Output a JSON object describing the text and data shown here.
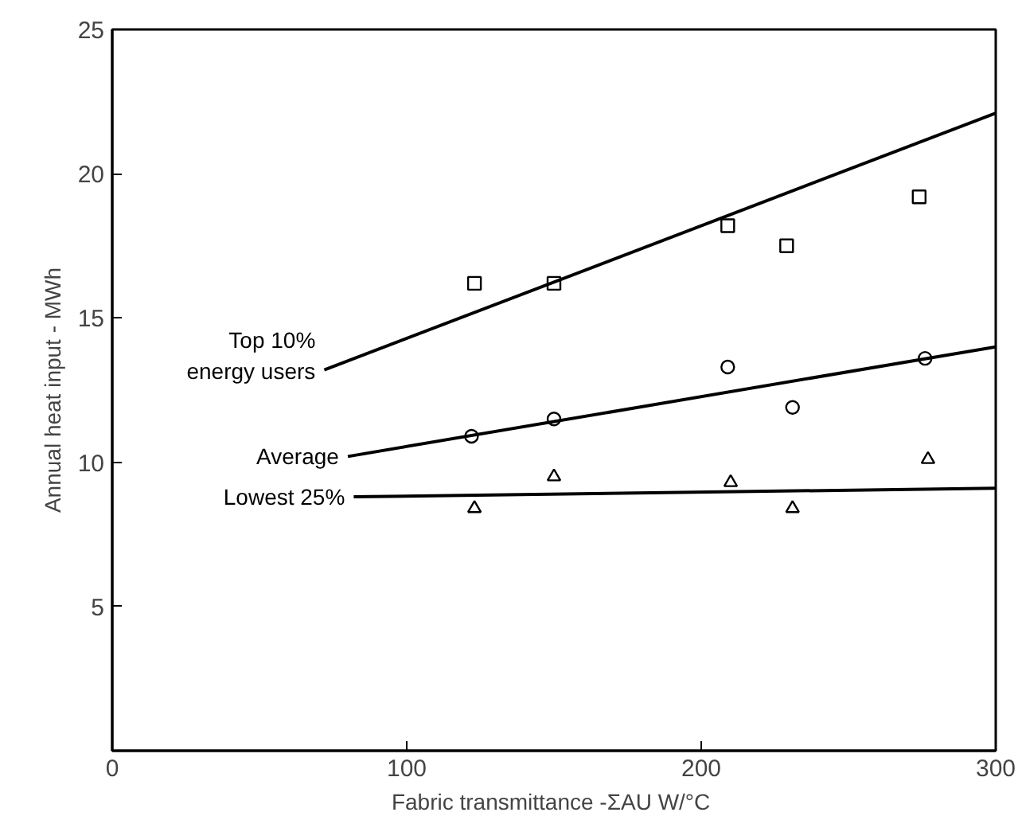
{
  "chart_data": {
    "type": "scatter",
    "xlabel": "Fabric transmittance -ΣAU  W/°C",
    "ylabel": "Annual heat input - MWh",
    "xlim": [
      0,
      300
    ],
    "ylim": [
      0,
      25
    ],
    "xticks": [
      0,
      100,
      200,
      300
    ],
    "yticks": [
      5,
      10,
      15,
      20,
      25
    ],
    "grid": false,
    "series": [
      {
        "marker": "square",
        "color": "#000000",
        "x": [
          123,
          150,
          209,
          229,
          274
        ],
        "values": [
          16.2,
          16.2,
          18.2,
          17.5,
          19.2
        ]
      },
      {
        "marker": "circle",
        "color": "#000000",
        "x": [
          122,
          150,
          209,
          231,
          276
        ],
        "values": [
          10.9,
          11.5,
          13.3,
          11.9,
          13.6
        ]
      },
      {
        "marker": "triangle",
        "color": "#000000",
        "x": [
          123,
          150,
          210,
          231,
          277
        ],
        "values": [
          8.4,
          9.5,
          9.3,
          8.4,
          10.1
        ]
      },
      {
        "type": "line",
        "name": "Top 10%\nenergy users",
        "color": "#000000",
        "line_style": "solid",
        "x": [
          72,
          300
        ],
        "values": [
          13.2,
          22.1
        ]
      },
      {
        "type": "line",
        "name": "Average",
        "color": "#000000",
        "line_style": "solid",
        "x": [
          80,
          300
        ],
        "values": [
          10.2,
          14.0
        ]
      },
      {
        "type": "line",
        "name": "Lowest 25%",
        "color": "#000000",
        "line_style": "solid",
        "x": [
          82,
          300
        ],
        "values": [
          8.8,
          9.1
        ]
      }
    ]
  }
}
